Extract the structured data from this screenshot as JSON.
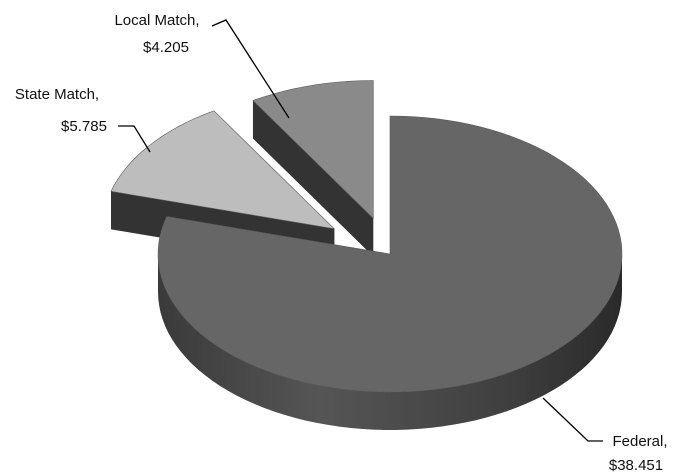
{
  "chart_data": {
    "type": "pie",
    "style": "3d-exploded",
    "title": "",
    "slices": [
      {
        "name": "Federal",
        "value": 38.451,
        "label_line1": "Federal,",
        "label_line2": "$38.451",
        "color": "#666666"
      },
      {
        "name": "State Match",
        "value": 5.785,
        "label_line1": "State Match,",
        "label_line2": "$5.785",
        "color": "#bdbdbd"
      },
      {
        "name": "Local Match",
        "value": 4.205,
        "label_line1": "Local Match,",
        "label_line2": "$4.205",
        "color": "#8a8a8a"
      }
    ],
    "legend": "none"
  }
}
